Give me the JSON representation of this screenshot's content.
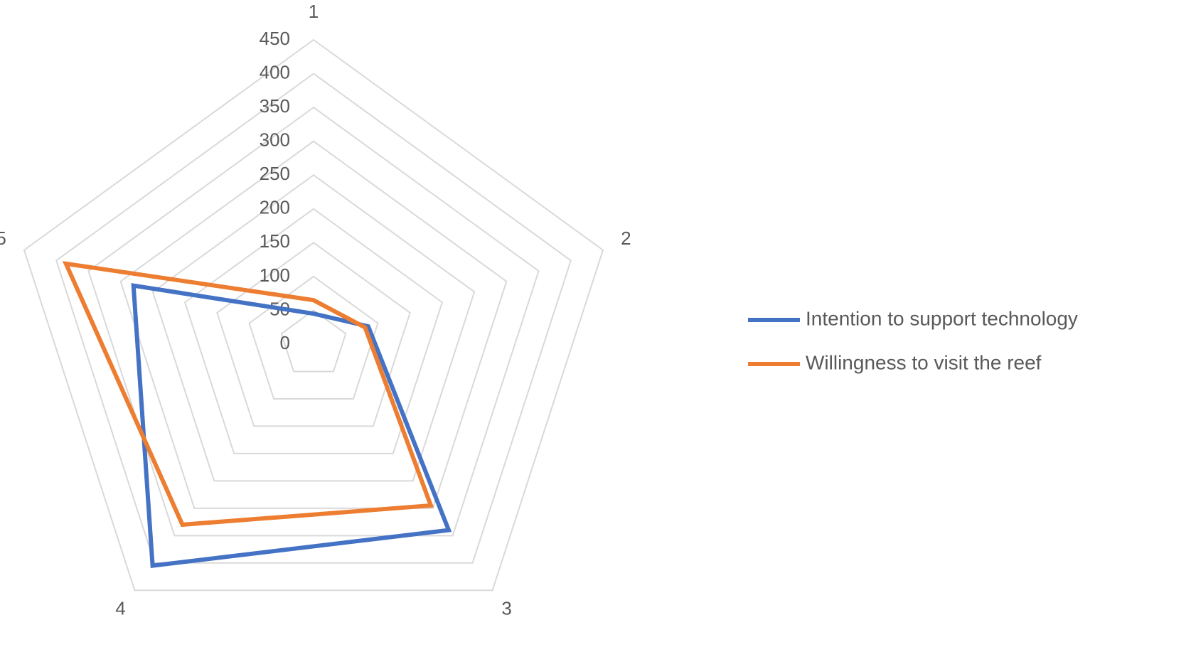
{
  "chart_data": {
    "type": "radar",
    "categories": [
      "1",
      "2",
      "3",
      "4",
      "5"
    ],
    "series": [
      {
        "name": "Intention to support technology",
        "color": "#4472c4",
        "values": [
          45,
          85,
          340,
          405,
          280
        ]
      },
      {
        "name": "Willingness to visit the reef",
        "color": "#ed7d31",
        "values": [
          65,
          80,
          295,
          330,
          385
        ]
      }
    ],
    "rlim": [
      0,
      450
    ],
    "rticks": [
      0,
      50,
      100,
      150,
      200,
      250,
      300,
      350,
      400,
      450
    ],
    "grid": true,
    "legend": "right"
  }
}
